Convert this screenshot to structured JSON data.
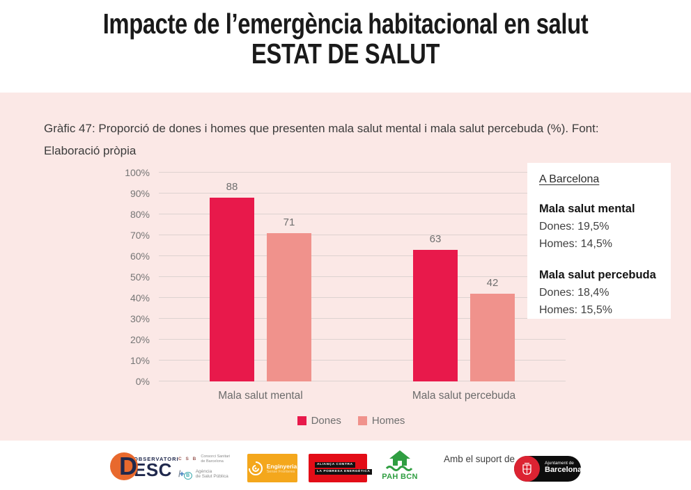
{
  "header": {
    "title_line1": "Impacte de l’emergència habitacional en salut",
    "title_line2": "ESTAT DE SALUT"
  },
  "caption": {
    "line1": "Gràfic 47: Proporció de dones i homes que presenten mala salut mental i mala salut percebuda (%). Font:",
    "line2": "Elaboració pròpia"
  },
  "chart_data": {
    "type": "bar",
    "categories": [
      "Mala salut mental",
      "Mala salut percebuda"
    ],
    "series": [
      {
        "name": "Dones",
        "values": [
          88,
          63
        ],
        "color": "#e8194b"
      },
      {
        "name": "Homes",
        "values": [
          71,
          42
        ],
        "color": "#f0928c"
      }
    ],
    "title": "",
    "xlabel": "",
    "ylabel": "",
    "ylim": [
      0,
      100
    ],
    "ytick_step": 10,
    "ytick_labels": [
      "0%",
      "10%",
      "20%",
      "30%",
      "40%",
      "50%",
      "60%",
      "70%",
      "80%",
      "90%",
      "100%"
    ],
    "grid": true,
    "legend_position": "bottom",
    "value_labels_shown": true
  },
  "info_box": {
    "title": "A Barcelona",
    "sections": [
      {
        "heading": "Mala salut mental",
        "lines": [
          "Dones: 19,5%",
          "Homes: 14,5%"
        ]
      },
      {
        "heading": "Mala salut percebuda",
        "lines": [
          "Dones: 18,4%",
          "Homes: 15,5%"
        ]
      }
    ]
  },
  "footer": {
    "support_text": "Amb el suport de",
    "desc": {
      "top": "OBSERVATORI",
      "main": "ESC",
      "initial": "D"
    },
    "csb": {
      "acronym": "C S B",
      "org1a": "Consorci Sanitari",
      "org1b": "de Barcelona",
      "slash": "/",
      "plus": "+",
      "b": "B",
      "org2a": "Agència",
      "org2b": "de Salut Pública"
    },
    "esf": {
      "line1": "Enginyeria",
      "line2": "Sense Fronteres"
    },
    "ape": {
      "line1": "ALIANÇA CONTRA",
      "line2": "LA POBRESA ENERGÈTICA"
    },
    "pah": {
      "label": "PAH BCN"
    },
    "ajuntament": {
      "line1": "Ajuntament de",
      "line2": "Barcelona"
    }
  },
  "colors": {
    "background_pink": "#fbe8e6",
    "dones_red": "#e8194b",
    "homes_salmon": "#f0928c",
    "title_black": "#1a1a1a"
  }
}
